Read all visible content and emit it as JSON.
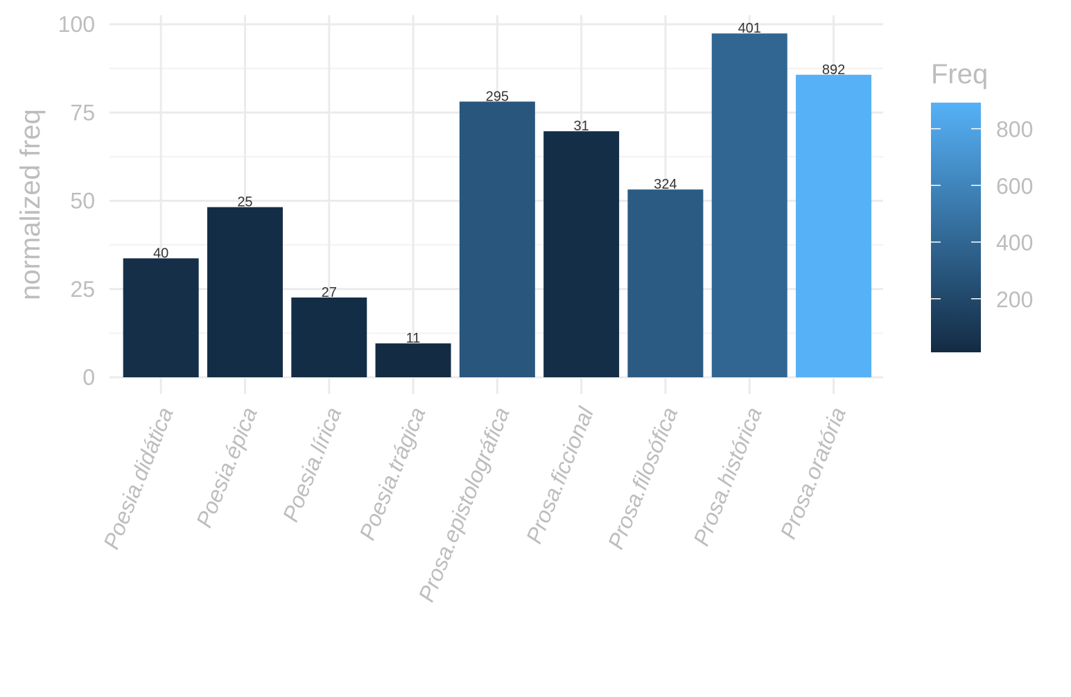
{
  "chart_data": {
    "type": "bar",
    "categories": [
      "Poesia.didática",
      "Poesia.épica",
      "Poesia.lírica",
      "Poesia.trágica",
      "Prosa.epistolográfica",
      "Prosa.ficcional",
      "Prosa.filosófica",
      "Prosa.histórica",
      "Prosa.oratória"
    ],
    "values": [
      33.7,
      48.2,
      22.6,
      9.6,
      78.1,
      69.7,
      53.2,
      97.4,
      85.7
    ],
    "freq_labels": [
      "40",
      "25",
      "27",
      "11",
      "295",
      "31",
      "324",
      "401",
      "892"
    ],
    "freq": [
      40,
      25,
      27,
      11,
      295,
      31,
      324,
      401,
      892
    ],
    "ylabel": "normalized freq",
    "xlabel": "",
    "title": "",
    "ylim": [
      0,
      100
    ],
    "y_ticks": [
      0,
      25,
      50,
      75,
      100
    ],
    "y_tick_labels": [
      "0",
      "25",
      "50",
      "75",
      "100"
    ],
    "grid": true,
    "legend": {
      "title": "Freq",
      "position": "right",
      "type": "colorbar",
      "range": [
        11,
        892
      ],
      "ticks": [
        200,
        400,
        600,
        800
      ],
      "tick_labels": [
        "200",
        "400",
        "600",
        "800"
      ],
      "color_low": "#132b43",
      "color_high": "#56b1f7"
    }
  }
}
